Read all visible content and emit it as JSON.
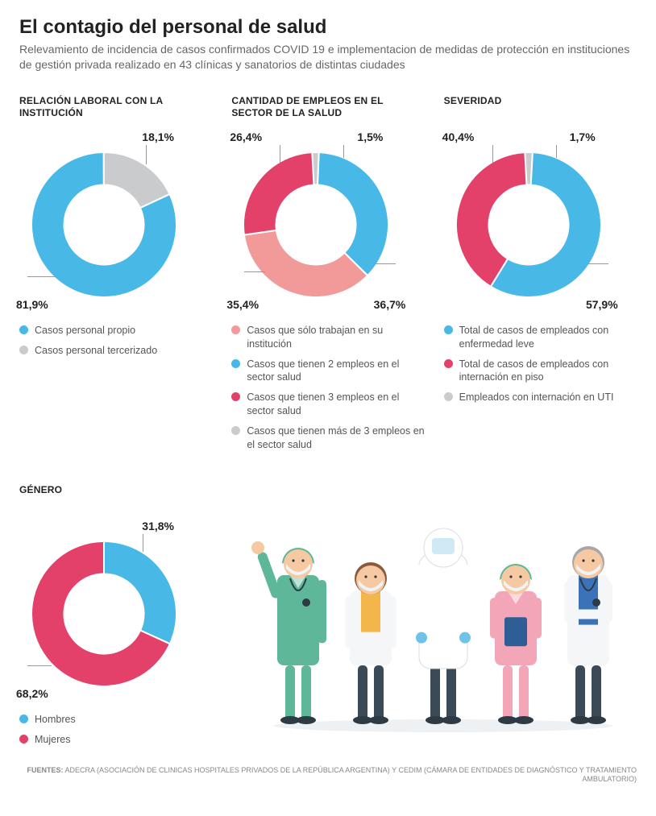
{
  "header": {
    "title": "El contagio del personal de salud",
    "subtitle": "Relevamiento de incidencia de casos confirmados COVID 19 e implementacion de medidas de protección en instituciones de gestión privada realizado en 43 clínicas y sanatorios de distintas ciudades"
  },
  "colors": {
    "blue": "#48b8e7",
    "grey": "#c9cbcd",
    "red": "#e3406a",
    "salmon": "#f29a9a",
    "text": "#333333",
    "muted": "#666666",
    "bg": "#ffffff"
  },
  "charts": {
    "relacion": {
      "title": "RELACIÓN LABORAL CON LA INSTITUCIÓN",
      "type": "donut",
      "inner_ratio": 0.55,
      "segments": [
        {
          "label": "Casos personal propio",
          "value": 81.9,
          "color": "#48b8e7",
          "display": "81,9%"
        },
        {
          "label": "Casos personal tercerizado",
          "value": 18.1,
          "color": "#c9cbcd",
          "display": "18,1%"
        }
      ]
    },
    "empleos": {
      "title": "CANTIDAD DE EMPLEOS EN EL SECTOR DE LA SALUD",
      "type": "donut",
      "inner_ratio": 0.55,
      "segments": [
        {
          "label": "Casos que sólo trabajan en su institución",
          "value": 35.4,
          "color": "#f29a9a",
          "display": "35,4%"
        },
        {
          "label": "Casos que tienen 2 empleos en el sector salud",
          "value": 36.7,
          "color": "#48b8e7",
          "display": "36,7%"
        },
        {
          "label": "Casos que tienen 3 empleos en el sector salud",
          "value": 26.4,
          "color": "#e3406a",
          "display": "26,4%"
        },
        {
          "label": "Casos que tienen más de 3 empleos en el sector salud",
          "value": 1.5,
          "color": "#c9cbcd",
          "display": "1,5%"
        }
      ]
    },
    "severidad": {
      "title": "SEVERIDAD",
      "type": "donut",
      "inner_ratio": 0.55,
      "segments": [
        {
          "label": "Total de casos de empleados con enfermedad leve",
          "value": 57.9,
          "color": "#48b8e7",
          "display": "57,9%"
        },
        {
          "label": "Total de casos de empleados con internación en piso",
          "value": 40.4,
          "color": "#e3406a",
          "display": "40,4%"
        },
        {
          "label": "Empleados con internación en UTI",
          "value": 1.7,
          "color": "#c9cbcd",
          "display": "1,7%"
        }
      ]
    },
    "genero": {
      "title": "GÉNERO",
      "type": "donut",
      "inner_ratio": 0.55,
      "segments": [
        {
          "label": "Hombres",
          "value": 31.8,
          "color": "#48b8e7",
          "display": "31,8%"
        },
        {
          "label": "Mujeres",
          "value": 68.2,
          "color": "#e3406a",
          "display": "68,2%"
        }
      ]
    }
  },
  "illustration": {
    "figures": [
      {
        "role": "male-nurse",
        "scrub": "#5fb79a",
        "skin": "#f6c9a3",
        "mask": "#eef4f6",
        "cap": "#5fb79a"
      },
      {
        "role": "female-doctor",
        "coat": "#f4f6f7",
        "shirt": "#f3b64b",
        "skin": "#f6c9a3",
        "hair": "#8a5a3a",
        "mask": "#eef4f6"
      },
      {
        "role": "hazmat",
        "suit": "#ffffff",
        "visor": "#cfe9f5",
        "gloves": "#6fc2e8"
      },
      {
        "role": "female-nurse",
        "scrub": "#f3a6b8",
        "skin": "#f6c9a3",
        "cap": "#5fb79a",
        "mask": "#eef4f6",
        "clipboard": "#2f5e97"
      },
      {
        "role": "male-doctor",
        "coat": "#f4f6f7",
        "shirt": "#3c73b8",
        "skin": "#f6c9a3",
        "hair": "#a7a7a7",
        "mask": "#eef4f6"
      }
    ]
  },
  "sources": {
    "label": "FUENTES:",
    "text": "ADECRA (ASOCIACIÓN DE CLINICAS HOSPITALES PRIVADOS DE LA REPÚBLICA ARGENTINA) Y CEDIM (CÁMARA DE ENTIDADES DE DIAGNÓSTICO Y TRATAMIENTO AMBULATORIO)"
  }
}
